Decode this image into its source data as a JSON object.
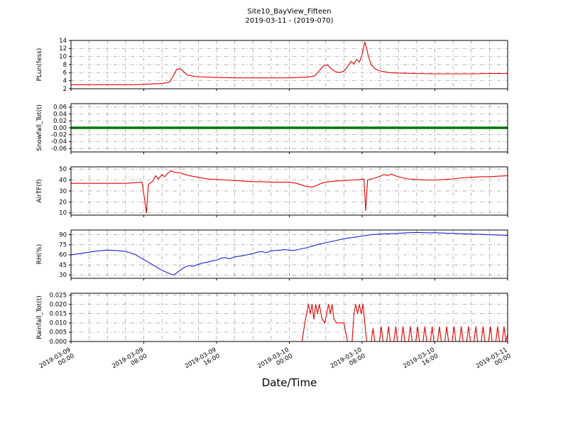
{
  "title": {
    "line1": "Site10_BayView_Fifteen",
    "line2": "2019-03-11 - (2019-070)"
  },
  "xlabel": "Date/Time",
  "colors": {
    "grid": "#999999",
    "frame": "#000000",
    "red": "#e60000",
    "green": "#007700",
    "blue": "#2222cc"
  },
  "chart_data": {
    "type": "line",
    "title": "Site10_BayView_Fifteen",
    "subtitle": "2019-03-11 - (2019-070)",
    "xlabel": "Date/Time",
    "x_unit": "hours since 2019-03-09 00:00",
    "x_range": [
      0,
      48
    ],
    "x_minor_step_hours": 2,
    "grid": "dash-dot",
    "x_major_ticks": [
      {
        "hour": 0,
        "date": "2019-03-09",
        "time": "00:00"
      },
      {
        "hour": 8,
        "date": "2019-03-09",
        "time": "08:00"
      },
      {
        "hour": 16,
        "date": "2019-03-09",
        "time": "16:00"
      },
      {
        "hour": 24,
        "date": "2019-03-10",
        "time": "00:00"
      },
      {
        "hour": 32,
        "date": "2019-03-10",
        "time": "08:00"
      },
      {
        "hour": 40,
        "date": "2019-03-10",
        "time": "16:00"
      },
      {
        "hour": 48,
        "date": "2019-03-11",
        "time": "00:00"
      }
    ],
    "panels": [
      {
        "name": "plun",
        "ylabel": "PLun(fess)",
        "color": "#e60000",
        "line_width": 1.1,
        "ylim": [
          2,
          14
        ],
        "yticks": [
          2,
          4,
          6,
          8,
          10,
          12,
          14
        ],
        "tick_decimals": 0,
        "points": [
          [
            0,
            3
          ],
          [
            1,
            3
          ],
          [
            2,
            3
          ],
          [
            3,
            3
          ],
          [
            4,
            3
          ],
          [
            5,
            3
          ],
          [
            6,
            3
          ],
          [
            7,
            3
          ],
          [
            8,
            3.1
          ],
          [
            9,
            3.2
          ],
          [
            10,
            3.3
          ],
          [
            10.8,
            3.6
          ],
          [
            11.2,
            5
          ],
          [
            11.6,
            6.8
          ],
          [
            12,
            7
          ],
          [
            12.4,
            6.2
          ],
          [
            12.8,
            5.4
          ],
          [
            13.5,
            5.1
          ],
          [
            14,
            5
          ],
          [
            15,
            4.9
          ],
          [
            16,
            4.8
          ],
          [
            18,
            4.7
          ],
          [
            20,
            4.7
          ],
          [
            22,
            4.7
          ],
          [
            24,
            4.7
          ],
          [
            25,
            4.8
          ],
          [
            26,
            4.9
          ],
          [
            26.8,
            5.2
          ],
          [
            27.3,
            6.5
          ],
          [
            27.8,
            7.8
          ],
          [
            28.2,
            7.9
          ],
          [
            28.6,
            7
          ],
          [
            29,
            6.3
          ],
          [
            29.5,
            6
          ],
          [
            30,
            6.4
          ],
          [
            30.4,
            7.5
          ],
          [
            30.8,
            8.8
          ],
          [
            31.1,
            8.2
          ],
          [
            31.4,
            9.3
          ],
          [
            31.7,
            8.6
          ],
          [
            32,
            10.5
          ],
          [
            32.3,
            13.6
          ],
          [
            32.5,
            12
          ],
          [
            32.7,
            10
          ],
          [
            33,
            8
          ],
          [
            33.4,
            7
          ],
          [
            33.8,
            6.5
          ],
          [
            34.5,
            6.2
          ],
          [
            35,
            6
          ],
          [
            36,
            5.9
          ],
          [
            38,
            5.8
          ],
          [
            40,
            5.7
          ],
          [
            42,
            5.7
          ],
          [
            44,
            5.7
          ],
          [
            46,
            5.8
          ],
          [
            48,
            5.8
          ]
        ]
      },
      {
        "name": "snowfall",
        "ylabel": "Snowfall_Tot(t)",
        "color": "#007700",
        "line_width": 3.5,
        "ylim": [
          -0.07,
          0.07
        ],
        "yticks": [
          -0.06,
          -0.04,
          -0.02,
          0.0,
          0.02,
          0.04,
          0.06
        ],
        "tick_decimals": 2,
        "points": [
          [
            0,
            0
          ],
          [
            48,
            0
          ]
        ]
      },
      {
        "name": "airtf",
        "ylabel": "AirTF(f)",
        "color": "#e60000",
        "line_width": 1.1,
        "ylim": [
          8,
          52
        ],
        "yticks": [
          10,
          20,
          30,
          40,
          50
        ],
        "tick_decimals": 0,
        "points": [
          [
            0,
            37
          ],
          [
            2,
            37
          ],
          [
            4,
            37
          ],
          [
            6,
            37
          ],
          [
            7,
            37.5
          ],
          [
            7.8,
            38
          ],
          [
            8.1,
            22
          ],
          [
            8.3,
            10
          ],
          [
            8.5,
            36
          ],
          [
            9,
            39
          ],
          [
            9.3,
            44
          ],
          [
            9.6,
            41
          ],
          [
            10,
            45
          ],
          [
            10.3,
            43
          ],
          [
            10.6,
            46
          ],
          [
            11,
            48.5
          ],
          [
            11.4,
            47
          ],
          [
            12,
            46.5
          ],
          [
            12.5,
            45
          ],
          [
            13,
            44
          ],
          [
            14,
            42.5
          ],
          [
            15,
            41
          ],
          [
            16,
            40.5
          ],
          [
            17,
            40
          ],
          [
            18,
            39.5
          ],
          [
            19,
            39
          ],
          [
            20,
            38.5
          ],
          [
            21,
            38.5
          ],
          [
            22,
            38
          ],
          [
            23,
            38
          ],
          [
            24,
            38
          ],
          [
            24.8,
            37
          ],
          [
            25.5,
            35
          ],
          [
            26,
            34
          ],
          [
            26.5,
            33.5
          ],
          [
            27,
            35
          ],
          [
            27.5,
            37
          ],
          [
            28,
            38
          ],
          [
            29,
            39
          ],
          [
            30,
            39.5
          ],
          [
            31,
            40
          ],
          [
            31.8,
            40.5
          ],
          [
            32.2,
            41
          ],
          [
            32.4,
            12
          ],
          [
            32.6,
            40
          ],
          [
            33,
            41
          ],
          [
            33.5,
            42
          ],
          [
            34,
            43.5
          ],
          [
            34.4,
            45
          ],
          [
            34.8,
            44
          ],
          [
            35.2,
            45.5
          ],
          [
            35.6,
            44
          ],
          [
            36,
            43
          ],
          [
            36.5,
            42
          ],
          [
            37,
            41
          ],
          [
            38,
            40.5
          ],
          [
            39,
            40
          ],
          [
            40,
            40
          ],
          [
            41,
            40.5
          ],
          [
            42,
            41
          ],
          [
            43,
            42
          ],
          [
            44,
            42.5
          ],
          [
            45,
            43
          ],
          [
            46,
            43
          ],
          [
            47,
            43.5
          ],
          [
            48,
            44
          ]
        ]
      },
      {
        "name": "rh",
        "ylabel": "RH(%)",
        "color": "#2222cc",
        "line_width": 1.1,
        "ylim": [
          25,
          97
        ],
        "yticks": [
          30,
          45,
          60,
          75,
          90
        ],
        "tick_decimals": 0,
        "points": [
          [
            0,
            60
          ],
          [
            1,
            62
          ],
          [
            2,
            64
          ],
          [
            3,
            66
          ],
          [
            4,
            67
          ],
          [
            5,
            66.5
          ],
          [
            6,
            65
          ],
          [
            7,
            61
          ],
          [
            8,
            53
          ],
          [
            8.5,
            49
          ],
          [
            9,
            45
          ],
          [
            9.5,
            41
          ],
          [
            10,
            37
          ],
          [
            10.5,
            34
          ],
          [
            11,
            31
          ],
          [
            11.3,
            30
          ],
          [
            11.6,
            33
          ],
          [
            12,
            37
          ],
          [
            12.3,
            40
          ],
          [
            12.6,
            42
          ],
          [
            13,
            44
          ],
          [
            13.4,
            43
          ],
          [
            14,
            46
          ],
          [
            14.5,
            48
          ],
          [
            15,
            49
          ],
          [
            15.5,
            51
          ],
          [
            16,
            52
          ],
          [
            16.5,
            55
          ],
          [
            17,
            56
          ],
          [
            17.4,
            54
          ],
          [
            18,
            57
          ],
          [
            19,
            59
          ],
          [
            20,
            62
          ],
          [
            20.5,
            64
          ],
          [
            21,
            65
          ],
          [
            21.4,
            63
          ],
          [
            22,
            66
          ],
          [
            23,
            67
          ],
          [
            23.5,
            68
          ],
          [
            24,
            67
          ],
          [
            24.5,
            66.5
          ],
          [
            25,
            68
          ],
          [
            26,
            71
          ],
          [
            27,
            75
          ],
          [
            28,
            78
          ],
          [
            29,
            81
          ],
          [
            30,
            84
          ],
          [
            31,
            86
          ],
          [
            32,
            88
          ],
          [
            33,
            90
          ],
          [
            34,
            91
          ],
          [
            35,
            91.5
          ],
          [
            36,
            92
          ],
          [
            37,
            93
          ],
          [
            38,
            93.5
          ],
          [
            39,
            93
          ],
          [
            40,
            93
          ],
          [
            41,
            92.5
          ],
          [
            42,
            92
          ],
          [
            43,
            91.5
          ],
          [
            44,
            91
          ],
          [
            45,
            90.5
          ],
          [
            46,
            90
          ],
          [
            47,
            89.5
          ],
          [
            48,
            89
          ]
        ]
      },
      {
        "name": "rainfall",
        "ylabel": "Rainfall_Tot(t)",
        "color": "#e60000",
        "line_width": 1.1,
        "ylim": [
          0,
          0.026
        ],
        "yticks": [
          0.0,
          0.005,
          0.01,
          0.015,
          0.02,
          0.025
        ],
        "tick_decimals": 3,
        "points": [
          [
            0,
            0
          ],
          [
            25.4,
            0
          ],
          [
            25.7,
            0.01
          ],
          [
            25.9,
            0.015
          ],
          [
            26.1,
            0.02
          ],
          [
            26.3,
            0.015
          ],
          [
            26.5,
            0.02
          ],
          [
            26.7,
            0.012
          ],
          [
            26.9,
            0.02
          ],
          [
            27.1,
            0.015
          ],
          [
            27.3,
            0.02
          ],
          [
            27.6,
            0.012
          ],
          [
            27.9,
            0.01
          ],
          [
            28.1,
            0.015
          ],
          [
            28.3,
            0.02
          ],
          [
            28.5,
            0.015
          ],
          [
            28.7,
            0.02
          ],
          [
            28.9,
            0.012
          ],
          [
            29.2,
            0.01
          ],
          [
            29.5,
            0.01
          ],
          [
            29.8,
            0.01
          ],
          [
            30,
            0.01
          ],
          [
            30.2,
            0.005
          ],
          [
            30.4,
            0
          ],
          [
            30.9,
            0
          ],
          [
            31.1,
            0.015
          ],
          [
            31.3,
            0.02
          ],
          [
            31.5,
            0.015
          ],
          [
            31.7,
            0.02
          ],
          [
            31.9,
            0.015
          ],
          [
            32.1,
            0.02
          ],
          [
            32.3,
            0.01
          ],
          [
            32.5,
            0
          ],
          [
            33,
            0
          ],
          [
            33.2,
            0.007
          ],
          [
            33.4,
            0
          ],
          [
            33.9,
            0
          ],
          [
            34.1,
            0.008
          ],
          [
            34.3,
            0
          ],
          [
            34.7,
            0
          ],
          [
            34.9,
            0.008
          ],
          [
            35.1,
            0
          ],
          [
            35.5,
            0
          ],
          [
            35.7,
            0.008
          ],
          [
            35.9,
            0
          ],
          [
            36.3,
            0
          ],
          [
            36.5,
            0.008
          ],
          [
            36.7,
            0
          ],
          [
            37.1,
            0
          ],
          [
            37.3,
            0.008
          ],
          [
            37.5,
            0
          ],
          [
            37.9,
            0
          ],
          [
            38.1,
            0.008
          ],
          [
            38.3,
            0
          ],
          [
            38.7,
            0
          ],
          [
            38.9,
            0.008
          ],
          [
            39.1,
            0
          ],
          [
            39.5,
            0
          ],
          [
            39.7,
            0.008
          ],
          [
            39.9,
            0
          ],
          [
            40.3,
            0
          ],
          [
            40.5,
            0.008
          ],
          [
            40.7,
            0
          ],
          [
            41.1,
            0
          ],
          [
            41.3,
            0.008
          ],
          [
            41.5,
            0
          ],
          [
            41.9,
            0
          ],
          [
            42.1,
            0.008
          ],
          [
            42.3,
            0
          ],
          [
            42.7,
            0
          ],
          [
            42.9,
            0.008
          ],
          [
            43.1,
            0
          ],
          [
            43.5,
            0
          ],
          [
            43.7,
            0.008
          ],
          [
            43.9,
            0
          ],
          [
            44.3,
            0
          ],
          [
            44.5,
            0.008
          ],
          [
            44.7,
            0
          ],
          [
            45.1,
            0
          ],
          [
            45.3,
            0.008
          ],
          [
            45.5,
            0
          ],
          [
            45.9,
            0
          ],
          [
            46.1,
            0.008
          ],
          [
            46.3,
            0
          ],
          [
            46.7,
            0
          ],
          [
            46.9,
            0.008
          ],
          [
            47.1,
            0
          ],
          [
            47.4,
            0
          ],
          [
            47.6,
            0.008
          ],
          [
            47.8,
            0
          ],
          [
            48,
            0.004
          ]
        ]
      }
    ]
  }
}
